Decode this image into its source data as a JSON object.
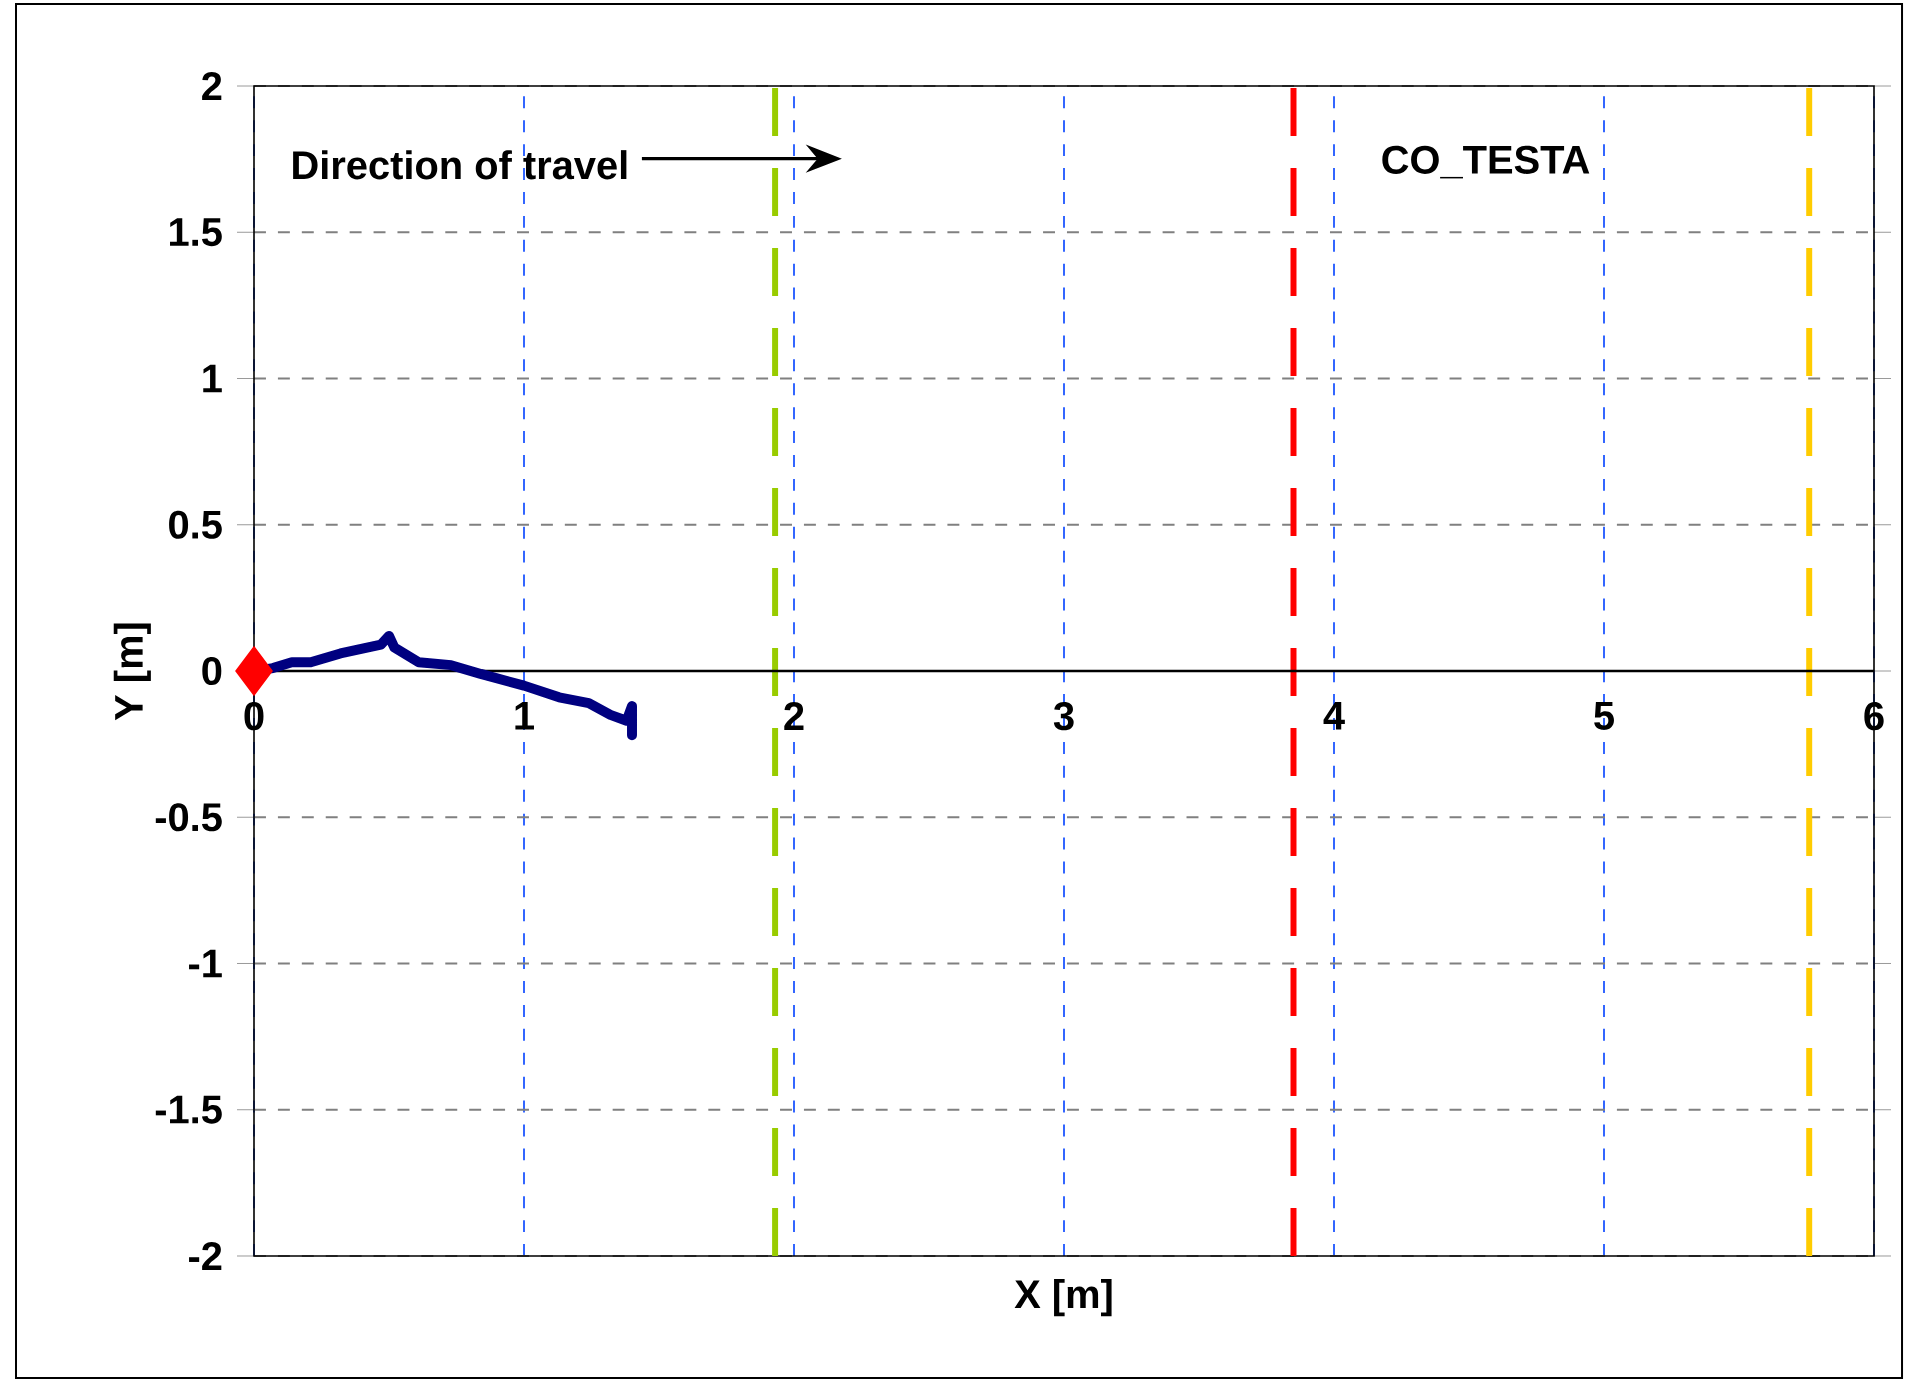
{
  "chart_data": {
    "type": "line",
    "xlabel": "X [m]",
    "ylabel": "Y [m]",
    "xlim": [
      0,
      6
    ],
    "ylim": [
      -2,
      2
    ],
    "xticks": [
      0,
      1,
      2,
      3,
      4,
      5,
      6
    ],
    "yticks": [
      -2,
      -1.5,
      -1,
      -0.5,
      0,
      0.5,
      1,
      1.5,
      2
    ],
    "grid": true,
    "series": [
      {
        "color": "#000080",
        "x": [
          0,
          0.07,
          0.14,
          0.21,
          0.32,
          0.47,
          0.5,
          0.52,
          0.61,
          0.73,
          0.84,
          1.0,
          1.13,
          1.24,
          1.32,
          1.38,
          1.4,
          1.4
        ],
        "values": [
          0,
          0.01,
          0.03,
          0.03,
          0.06,
          0.09,
          0.12,
          0.08,
          0.03,
          0.02,
          -0.01,
          -0.05,
          -0.09,
          -0.11,
          -0.15,
          -0.17,
          -0.12,
          -0.22
        ]
      },
      {
        "type": "scatter",
        "marker": "diamond",
        "color": "#ff0000",
        "x": [
          0
        ],
        "values": [
          0
        ]
      }
    ],
    "ref_lines": [
      {
        "axis": "x",
        "value": 1.93,
        "color": "#99cc00",
        "line_style": "dashed"
      },
      {
        "axis": "x",
        "value": 3.85,
        "color": "#ff0000",
        "line_style": "dashed"
      },
      {
        "axis": "x",
        "value": 5.76,
        "color": "#ffcc00",
        "line_style": "dashed"
      }
    ],
    "annotations": [
      "Direction of travel",
      "CO_TESTA"
    ]
  }
}
